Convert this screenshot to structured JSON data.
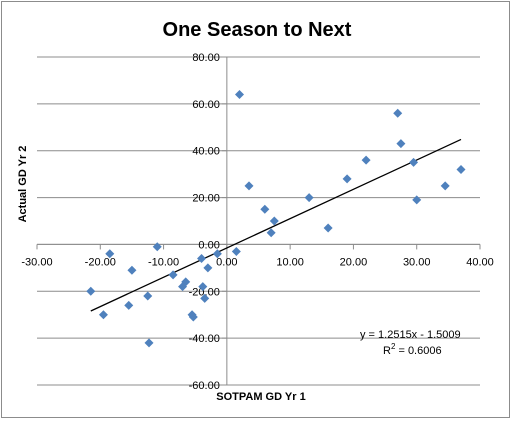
{
  "chart_data": {
    "type": "scatter",
    "title": "One Season to Next",
    "xlabel": "SOTPAM GD Yr 1",
    "ylabel": "Actual GD Yr 2",
    "xlim": [
      -30,
      40
    ],
    "ylim": [
      -60,
      80
    ],
    "x_ticks": [
      -30,
      -20,
      -10,
      0,
      10,
      20,
      30,
      40
    ],
    "y_ticks": [
      -60,
      -40,
      -20,
      0,
      20,
      40,
      60,
      80
    ],
    "x_tick_labels": [
      "-30.00",
      "-20.00",
      "-10.00",
      "0.00",
      "10.00",
      "20.00",
      "30.00",
      "40.00"
    ],
    "y_tick_labels": [
      "-60.00",
      "-40.00",
      "-20.00",
      "0.00",
      "20.00",
      "40.00",
      "60.00",
      "80.00"
    ],
    "grid": "horizontal",
    "marker_color": "#4f81bd",
    "trendline_color": "#000000",
    "points": [
      {
        "x": -21.5,
        "y": -20
      },
      {
        "x": -19.5,
        "y": -30
      },
      {
        "x": -18.5,
        "y": -4
      },
      {
        "x": -15.5,
        "y": -26
      },
      {
        "x": -15,
        "y": -11
      },
      {
        "x": -12.5,
        "y": -22
      },
      {
        "x": -12.3,
        "y": -42
      },
      {
        "x": -11,
        "y": -1
      },
      {
        "x": -8.5,
        "y": -13
      },
      {
        "x": -7,
        "y": -18
      },
      {
        "x": -6.5,
        "y": -16
      },
      {
        "x": -5.5,
        "y": -30
      },
      {
        "x": -5.3,
        "y": -31
      },
      {
        "x": -4,
        "y": -6
      },
      {
        "x": -3.8,
        "y": -18
      },
      {
        "x": -3.5,
        "y": -23
      },
      {
        "x": -3,
        "y": -10
      },
      {
        "x": -1.5,
        "y": -4
      },
      {
        "x": 1.5,
        "y": -3
      },
      {
        "x": 2,
        "y": 64
      },
      {
        "x": 3.5,
        "y": 25
      },
      {
        "x": 6,
        "y": 15
      },
      {
        "x": 7,
        "y": 5
      },
      {
        "x": 7.5,
        "y": 10
      },
      {
        "x": 13,
        "y": 20
      },
      {
        "x": 16,
        "y": 7
      },
      {
        "x": 19,
        "y": 28
      },
      {
        "x": 22,
        "y": 36
      },
      {
        "x": 27,
        "y": 56
      },
      {
        "x": 27.5,
        "y": 43
      },
      {
        "x": 29.5,
        "y": 35
      },
      {
        "x": 30,
        "y": 19
      },
      {
        "x": 34.5,
        "y": 25
      },
      {
        "x": 37,
        "y": 32
      }
    ],
    "trendline": {
      "slope": 1.2515,
      "intercept": -1.5009,
      "x_range": [
        -21.5,
        37
      ],
      "equation_label": "y = 1.2515x - 1.5009",
      "r2_label_prefix": "R",
      "r2_label_sup": "2",
      "r2_label_suffix": " = 0.6006"
    }
  }
}
